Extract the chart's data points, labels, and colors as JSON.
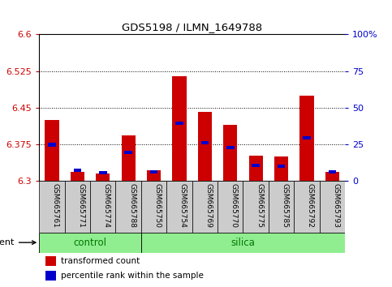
{
  "title": "GDS5198 / ILMN_1649788",
  "samples": [
    "GSM665761",
    "GSM665771",
    "GSM665774",
    "GSM665788",
    "GSM665750",
    "GSM665754",
    "GSM665769",
    "GSM665770",
    "GSM665775",
    "GSM665785",
    "GSM665792",
    "GSM665793"
  ],
  "groups": [
    {
      "label": "control",
      "color": "#90EE90",
      "start": 0,
      "end": 3
    },
    {
      "label": "silica",
      "color": "#90EE90",
      "start": 4,
      "end": 11
    }
  ],
  "red_values": [
    6.425,
    6.318,
    6.315,
    6.393,
    6.322,
    6.515,
    6.442,
    6.415,
    6.352,
    6.35,
    6.475,
    6.318
  ],
  "blue_values": [
    6.374,
    6.322,
    6.317,
    6.358,
    6.318,
    6.418,
    6.378,
    6.368,
    6.332,
    6.33,
    6.388,
    6.318
  ],
  "ymin": 6.3,
  "ymax": 6.6,
  "yticks": [
    6.3,
    6.375,
    6.45,
    6.525,
    6.6
  ],
  "ytick_labels": [
    "6.3",
    "6.375",
    "6.45",
    "6.525",
    "6.6"
  ],
  "y2min": 0,
  "y2max": 100,
  "y2ticks": [
    0,
    25,
    50,
    75,
    100
  ],
  "y2tick_labels": [
    "0",
    "25",
    "50",
    "75",
    "100%"
  ],
  "bar_color": "#CC0000",
  "blue_color": "#0000CC",
  "bar_width": 0.55,
  "background_color": "#ffffff",
  "tick_label_bg": "#cccccc",
  "group_text_color": "#007700",
  "legend_items": [
    {
      "label": "transformed count",
      "color": "#CC0000"
    },
    {
      "label": "percentile rank within the sample",
      "color": "#0000CC"
    }
  ],
  "left_tick_color": "#CC0000",
  "right_tick_color": "#0000CC"
}
